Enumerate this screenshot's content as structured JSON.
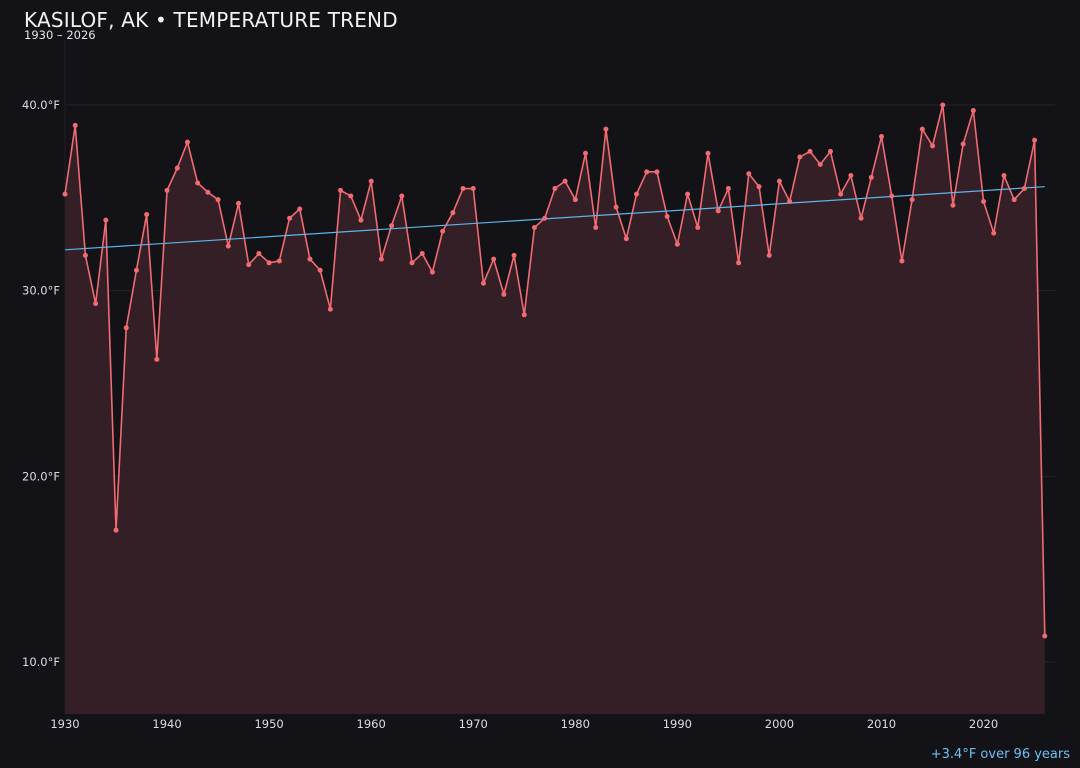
{
  "title": "KASILOF, AK • TEMPERATURE TREND",
  "subtitle": "1930 – 2026",
  "trend_note": "+3.4°F over 96 years",
  "colors": {
    "background": "#131217",
    "series_line": "#f06b72",
    "series_fill": "#341f26",
    "trend_line": "#5fb4ea",
    "grid": "#2a2228",
    "text": "#e9e9ee"
  },
  "chart_data": {
    "type": "line",
    "title": "KASILOF, AK • TEMPERATURE TREND",
    "subtitle": "1930 – 2026",
    "xlabel": "",
    "ylabel": "",
    "xlim": [
      1930,
      2027
    ],
    "ylim": [
      7.2,
      43.5
    ],
    "grid": true,
    "x_ticks": [
      1930,
      1940,
      1950,
      1960,
      1970,
      1980,
      1990,
      2000,
      2010,
      2020
    ],
    "y_ticks": [
      {
        "value": 10,
        "label": "10.0°F"
      },
      {
        "value": 20,
        "label": "20.0°F"
      },
      {
        "value": 30,
        "label": "30.0°F"
      },
      {
        "value": 40,
        "label": "40.0°F"
      }
    ],
    "x": [
      1930,
      1931,
      1932,
      1933,
      1934,
      1935,
      1936,
      1937,
      1938,
      1939,
      1940,
      1941,
      1942,
      1943,
      1944,
      1945,
      1946,
      1947,
      1948,
      1949,
      1950,
      1951,
      1952,
      1953,
      1954,
      1955,
      1956,
      1957,
      1958,
      1959,
      1960,
      1961,
      1962,
      1963,
      1964,
      1965,
      1966,
      1967,
      1968,
      1969,
      1970,
      1971,
      1972,
      1973,
      1974,
      1975,
      1976,
      1977,
      1978,
      1979,
      1980,
      1981,
      1982,
      1983,
      1984,
      1985,
      1986,
      1987,
      1988,
      1989,
      1990,
      1991,
      1992,
      1993,
      1994,
      1995,
      1996,
      1997,
      1998,
      1999,
      2000,
      2001,
      2002,
      2003,
      2004,
      2005,
      2006,
      2007,
      2008,
      2009,
      2010,
      2011,
      2012,
      2013,
      2014,
      2015,
      2016,
      2017,
      2018,
      2019,
      2020,
      2021,
      2022,
      2023,
      2024,
      2025,
      2026
    ],
    "series": [
      {
        "values": [
          35.2,
          38.9,
          31.9,
          29.3,
          33.8,
          17.1,
          28.0,
          31.1,
          34.1,
          26.3,
          35.4,
          36.6,
          38.0,
          35.8,
          35.3,
          34.9,
          32.4,
          34.7,
          31.4,
          32.0,
          31.5,
          31.6,
          33.9,
          34.4,
          31.7,
          31.1,
          29.0,
          35.4,
          35.1,
          33.8,
          35.9,
          31.7,
          33.5,
          35.1,
          31.5,
          32.0,
          31.0,
          33.2,
          34.2,
          35.5,
          35.5,
          30.4,
          31.7,
          29.8,
          31.9,
          28.7,
          33.4,
          33.9,
          35.5,
          35.9,
          34.9,
          37.4,
          33.4,
          38.7,
          34.5,
          32.8,
          35.2,
          36.4,
          36.4,
          34.0,
          32.5,
          35.2,
          33.4,
          37.4,
          34.3,
          35.5,
          31.5,
          36.3,
          35.6,
          31.9,
          35.9,
          34.8,
          37.2,
          37.5,
          36.8,
          37.5,
          35.2,
          36.2,
          33.9,
          36.1,
          38.3,
          35.1,
          31.6,
          34.9,
          38.7,
          37.8,
          40.0,
          34.6,
          37.9,
          39.7,
          34.8,
          33.1,
          36.2,
          34.9,
          35.5,
          38.1,
          11.4
        ]
      }
    ],
    "trend": {
      "x": [
        1930,
        2026
      ],
      "y": [
        32.2,
        35.6
      ],
      "label": "+3.4°F over 96 years"
    }
  }
}
